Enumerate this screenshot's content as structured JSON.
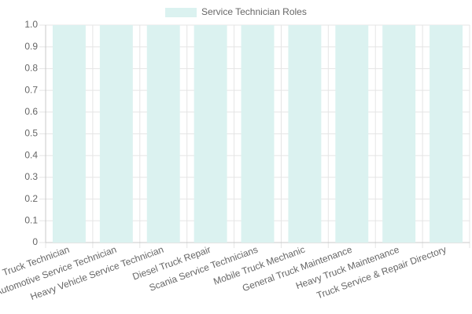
{
  "chart_data": {
    "type": "bar",
    "categories": [
      "Truck Technician",
      "Automotive Service Technician",
      "Heavy Vehicle Service Technician",
      "Diesel Truck Repair",
      "Scania Service Technicians",
      "Mobile Truck Mechanic",
      "General Truck Maintenance",
      "Heavy Truck Maintenance",
      "Truck Service & Repair Directory"
    ],
    "series": [
      {
        "name": "Service Technician Roles",
        "color": "#dbf2f0",
        "values": [
          1,
          1,
          1,
          1,
          1,
          1,
          1,
          1,
          1
        ]
      }
    ],
    "ylim": [
      0,
      1
    ],
    "yticks": [
      0,
      0.1,
      0.2,
      0.3,
      0.4,
      0.5,
      0.6,
      0.7,
      0.8,
      0.9,
      {
        "value": 1,
        "label": "1.0"
      }
    ],
    "grid": true,
    "legend": "top"
  }
}
